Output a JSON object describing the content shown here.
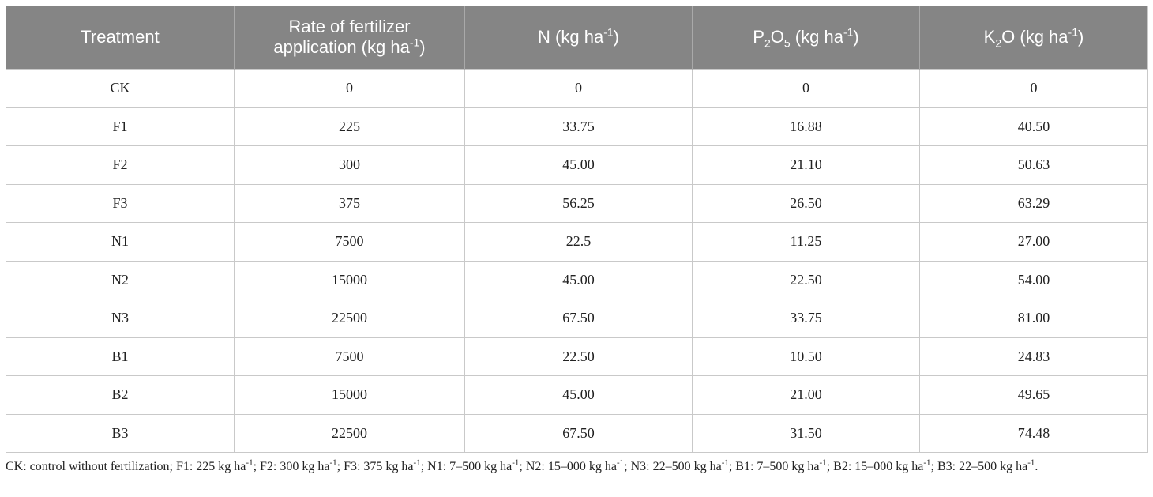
{
  "table": {
    "headers": [
      {
        "text": "Treatment"
      },
      {
        "line1": "Rate of fertilizer",
        "line2a": "application (kg ha",
        "sup": "-1",
        "line2b": ")"
      },
      {
        "pre": "N (kg ha",
        "sup": "-1",
        "post": ")"
      },
      {
        "pre": "P",
        "sub1": "2",
        "mid": "O",
        "sub2": "5",
        "post1": " (kg ha",
        "sup": "-1",
        "post2": ")"
      },
      {
        "pre": "K",
        "sub1": "2",
        "mid": "O (kg ha",
        "sup": "-1",
        "post": ")"
      }
    ],
    "rows": [
      [
        "CK",
        "0",
        "0",
        "0",
        "0"
      ],
      [
        "F1",
        "225",
        "33.75",
        "16.88",
        "40.50"
      ],
      [
        "F2",
        "300",
        "45.00",
        "21.10",
        "50.63"
      ],
      [
        "F3",
        "375",
        "56.25",
        "26.50",
        "63.29"
      ],
      [
        "N1",
        "7500",
        "22.5",
        "11.25",
        "27.00"
      ],
      [
        "N2",
        "15000",
        "45.00",
        "22.50",
        "54.00"
      ],
      [
        "N3",
        "22500",
        "67.50",
        "33.75",
        "81.00"
      ],
      [
        "B1",
        "7500",
        "22.50",
        "10.50",
        "24.83"
      ],
      [
        "B2",
        "15000",
        "45.00",
        "21.00",
        "49.65"
      ],
      [
        "B3",
        "22500",
        "67.50",
        "31.50",
        "74.48"
      ]
    ]
  },
  "footnote": {
    "parts": [
      "CK: control without fertilization; F1: 225 kg ha",
      "-1",
      "; F2: 300 kg ha",
      "-1",
      "; F3: 375 kg ha",
      "-1",
      "; N1: 7–500 kg ha",
      "-1",
      "; N2: 15–000 kg ha",
      "-1",
      "; N3: 22–500 kg ha",
      "-1",
      "; B1: 7–500 kg ha",
      "-1",
      "; B2: 15–000 kg ha",
      "-1",
      "; B3: 22–500 kg ha",
      "-1",
      "."
    ]
  }
}
